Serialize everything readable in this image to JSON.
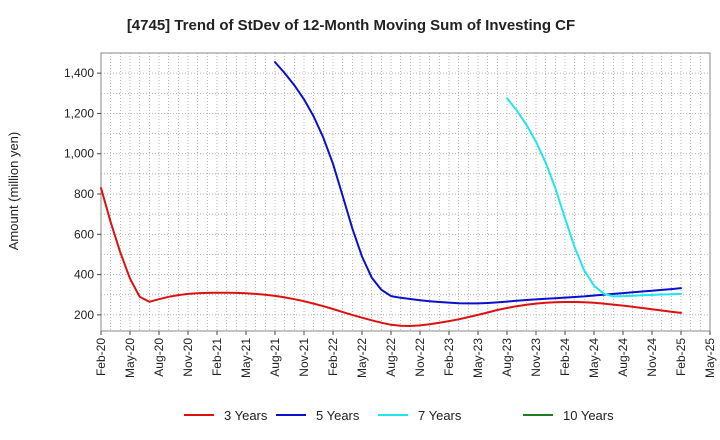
{
  "chart_data": {
    "type": "line",
    "title": "[4745]  Trend of StDev of 12-Month Moving Sum of Investing CF",
    "xlabel": "",
    "ylabel": "Amount (million yen)",
    "ylim": [
      120,
      1500
    ],
    "yticks": [
      200,
      400,
      600,
      800,
      1000,
      1200,
      1400
    ],
    "ytick_labels": [
      "200",
      "400",
      "600",
      "800",
      "1,000",
      "1,200",
      "1,400"
    ],
    "x_tick_labels": [
      "Feb-20",
      "May-20",
      "Aug-20",
      "Nov-20",
      "Feb-21",
      "May-21",
      "Aug-21",
      "Nov-21",
      "Feb-22",
      "May-22",
      "Aug-22",
      "Nov-22",
      "Feb-23",
      "May-23",
      "Aug-23",
      "Nov-23",
      "Feb-24",
      "May-24",
      "Aug-24",
      "Nov-24",
      "Feb-25",
      "May-25"
    ],
    "grid": true,
    "legend_position": "bottom",
    "series": [
      {
        "name": "3 Years",
        "color": "#dd1111",
        "points": [
          [
            "Feb-20",
            830
          ],
          [
            "Mar-20",
            660
          ],
          [
            "Apr-20",
            510
          ],
          [
            "May-20",
            380
          ],
          [
            "Jun-20",
            290
          ],
          [
            "Jul-20",
            265
          ],
          [
            "Aug-20",
            278
          ],
          [
            "Sep-20",
            290
          ],
          [
            "Oct-20",
            298
          ],
          [
            "Nov-20",
            304
          ],
          [
            "Dec-20",
            307
          ],
          [
            "Jan-21",
            309
          ],
          [
            "Feb-21",
            310
          ],
          [
            "Mar-21",
            310
          ],
          [
            "Apr-21",
            309
          ],
          [
            "May-21",
            307
          ],
          [
            "Jun-21",
            304
          ],
          [
            "Jul-21",
            300
          ],
          [
            "Aug-21",
            294
          ],
          [
            "Sep-21",
            287
          ],
          [
            "Oct-21",
            278
          ],
          [
            "Nov-21",
            268
          ],
          [
            "Dec-21",
            256
          ],
          [
            "Jan-22",
            243
          ],
          [
            "Feb-22",
            229
          ],
          [
            "Mar-22",
            214
          ],
          [
            "Apr-22",
            200
          ],
          [
            "May-22",
            186
          ],
          [
            "Jun-22",
            173
          ],
          [
            "Jul-22",
            161
          ],
          [
            "Aug-22",
            151
          ],
          [
            "Sep-22",
            146
          ],
          [
            "Oct-22",
            145
          ],
          [
            "Nov-22",
            148
          ],
          [
            "Dec-22",
            154
          ],
          [
            "Jan-23",
            161
          ],
          [
            "Feb-23",
            169
          ],
          [
            "Mar-23",
            178
          ],
          [
            "Apr-23",
            189
          ],
          [
            "May-23",
            200
          ],
          [
            "Jun-23",
            212
          ],
          [
            "Jul-23",
            224
          ],
          [
            "Aug-23",
            234
          ],
          [
            "Sep-23",
            243
          ],
          [
            "Oct-23",
            250
          ],
          [
            "Nov-23",
            256
          ],
          [
            "Dec-23",
            260
          ],
          [
            "Jan-24",
            263
          ],
          [
            "Feb-24",
            264
          ],
          [
            "Mar-24",
            264
          ],
          [
            "Apr-24",
            263
          ],
          [
            "May-24",
            260
          ],
          [
            "Jun-24",
            256
          ],
          [
            "Jul-24",
            251
          ],
          [
            "Aug-24",
            246
          ],
          [
            "Sep-24",
            240
          ],
          [
            "Oct-24",
            234
          ],
          [
            "Nov-24",
            228
          ],
          [
            "Dec-24",
            222
          ],
          [
            "Jan-25",
            216
          ],
          [
            "Feb-25",
            210
          ]
        ]
      },
      {
        "name": "5 Years",
        "color": "#0a10cc",
        "points": [
          [
            "Aug-21",
            1455
          ],
          [
            "Sep-21",
            1400
          ],
          [
            "Oct-21",
            1340
          ],
          [
            "Nov-21",
            1270
          ],
          [
            "Dec-21",
            1185
          ],
          [
            "Jan-22",
            1080
          ],
          [
            "Feb-22",
            950
          ],
          [
            "Mar-22",
            790
          ],
          [
            "Apr-22",
            630
          ],
          [
            "May-22",
            490
          ],
          [
            "Jun-22",
            385
          ],
          [
            "Jul-22",
            325
          ],
          [
            "Aug-22",
            293
          ],
          [
            "Sep-22",
            285
          ],
          [
            "Oct-22",
            279
          ],
          [
            "Nov-22",
            273
          ],
          [
            "Dec-22",
            268
          ],
          [
            "Jan-23",
            264
          ],
          [
            "Feb-23",
            261
          ],
          [
            "Mar-23",
            258
          ],
          [
            "Apr-23",
            257
          ],
          [
            "May-23",
            257
          ],
          [
            "Jun-23",
            259
          ],
          [
            "Jul-23",
            262
          ],
          [
            "Aug-23",
            266
          ],
          [
            "Sep-23",
            270
          ],
          [
            "Oct-23",
            274
          ],
          [
            "Nov-23",
            277
          ],
          [
            "Dec-23",
            280
          ],
          [
            "Jan-24",
            283
          ],
          [
            "Feb-24",
            286
          ],
          [
            "Mar-24",
            289
          ],
          [
            "Apr-24",
            292
          ],
          [
            "May-24",
            296
          ],
          [
            "Jun-24",
            300
          ],
          [
            "Jul-24",
            304
          ],
          [
            "Aug-24",
            308
          ],
          [
            "Sep-24",
            312
          ],
          [
            "Oct-24",
            316
          ],
          [
            "Nov-24",
            320
          ],
          [
            "Dec-24",
            324
          ],
          [
            "Jan-25",
            328
          ],
          [
            "Feb-25",
            333
          ]
        ]
      },
      {
        "name": "7 Years",
        "color": "#22e6ee",
        "points": [
          [
            "Aug-23",
            1275
          ],
          [
            "Sep-23",
            1215
          ],
          [
            "Oct-23",
            1145
          ],
          [
            "Nov-23",
            1060
          ],
          [
            "Dec-23",
            955
          ],
          [
            "Jan-24",
            830
          ],
          [
            "Feb-24",
            680
          ],
          [
            "Mar-24",
            535
          ],
          [
            "Apr-24",
            420
          ],
          [
            "May-24",
            345
          ],
          [
            "Jun-24",
            305
          ],
          [
            "Jul-24",
            292
          ],
          [
            "Aug-24",
            293
          ],
          [
            "Sep-24",
            295
          ],
          [
            "Oct-24",
            297
          ],
          [
            "Nov-24",
            299
          ],
          [
            "Dec-24",
            301
          ],
          [
            "Jan-25",
            302
          ],
          [
            "Feb-25",
            304
          ]
        ]
      },
      {
        "name": "10 Years",
        "color": "#1e7b1e",
        "points": []
      }
    ]
  }
}
